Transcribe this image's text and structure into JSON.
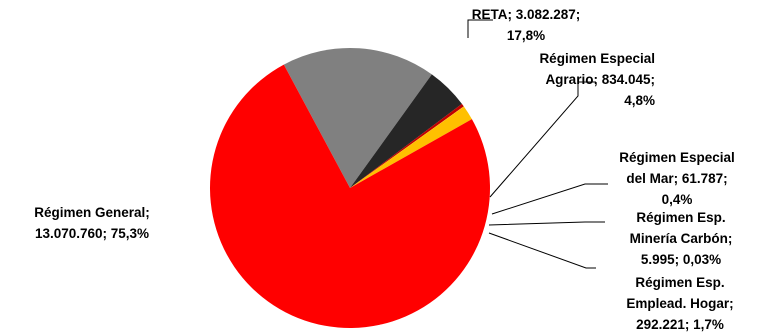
{
  "chart_data": {
    "type": "pie",
    "title": "",
    "slices": [
      {
        "name": "Régimen General",
        "value": 13070760,
        "percent": 75.3,
        "color": "#ff0000",
        "label": [
          "Régimen General;",
          "13.070.760; 75,3%"
        ]
      },
      {
        "name": "RETA",
        "value": 3082287,
        "percent": 17.8,
        "color": "#808080",
        "label": [
          "RETA; 3.082.287;",
          "17,8%"
        ]
      },
      {
        "name": "Régimen Especial Agrario",
        "value": 834045,
        "percent": 4.8,
        "color": "#262626",
        "label": [
          "Régimen Especial",
          "Agrario; 834.045;",
          "4,8%"
        ]
      },
      {
        "name": "Régimen Especial del Mar",
        "value": 61787,
        "percent": 0.4,
        "color": "#c00000",
        "label": [
          "Régimen Especial",
          "del Mar; 61.787;",
          "0,4%"
        ]
      },
      {
        "name": "Régimen Esp. Minería Carbón",
        "value": 5995,
        "percent": 0.03,
        "color": "#ffc000",
        "label": [
          "Régimen  Esp.",
          "Minería Carbón;",
          "5.995; 0,03%"
        ]
      },
      {
        "name": "Régimen Esp. Emplead. Hogar",
        "value": 292221,
        "percent": 1.7,
        "color": "#ffc000",
        "label": [
          "Régimen Esp.",
          "Emplead. Hogar;",
          "292.221; 1,7%"
        ]
      }
    ]
  }
}
